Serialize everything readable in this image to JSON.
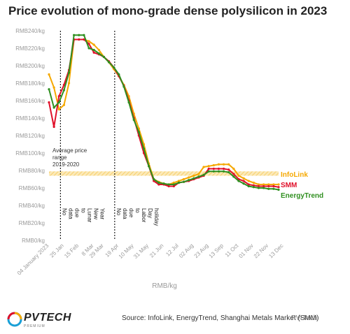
{
  "title": "Price evolution of mono-grade dense polysilicon in 2023",
  "source": "Source: InfoLink, EnergyTrend, Shanghai Metals Market (SMM)",
  "watermark": "PV-Tech",
  "logo": {
    "word": "PVTECH",
    "sub": "PREMIUM"
  },
  "chart_data": {
    "type": "line",
    "title": "Price evolution of mono-grade dense polysilicon in 2023",
    "xlabel": "RMB/kg",
    "ylabel": "",
    "ylim": [
      0,
      240
    ],
    "y_ticks": [
      0,
      20,
      40,
      60,
      80,
      100,
      120,
      140,
      160,
      180,
      200,
      220,
      240
    ],
    "y_tick_labels": [
      "RMB0/kg",
      "RMB20/kg",
      "RMB40/kg",
      "RMB60/kg",
      "RMB80/kg",
      "RMB100/kg",
      "RMB120/kg",
      "RMB140/kg",
      "RMB160/kg",
      "RMB180/kg",
      "RMB200/kg",
      "RMB220/kg",
      "RMB240/kg"
    ],
    "x_tick_labels": [
      {
        "x": 0,
        "label": "04 January 2023"
      },
      {
        "x": 3,
        "label": "25 Jan"
      },
      {
        "x": 6,
        "label": "15 Feb"
      },
      {
        "x": 9,
        "label": "8 Mar"
      },
      {
        "x": 11,
        "label": "29 Mar"
      },
      {
        "x": 14,
        "label": "19 Apr"
      },
      {
        "x": 17,
        "label": "10 May"
      },
      {
        "x": 20,
        "label": "31 May"
      },
      {
        "x": 23,
        "label": "21 Jun"
      },
      {
        "x": 26,
        "label": "12 Jul"
      },
      {
        "x": 29,
        "label": "02 Aug"
      },
      {
        "x": 32,
        "label": "23 Aug"
      },
      {
        "x": 35,
        "label": "13 Sep"
      },
      {
        "x": 38,
        "label": "11 Oct"
      },
      {
        "x": 41,
        "label": "01 Nov"
      },
      {
        "x": 44,
        "label": "22 Nov"
      },
      {
        "x": 47,
        "label": "13 Dec"
      }
    ],
    "grid": false,
    "legend_position": "right",
    "shaded_band": {
      "y_from": 74,
      "y_to": 79,
      "label": "Average price range 2019-2020",
      "color": "#f5c242"
    },
    "dashed_lines": [
      {
        "x": 3,
        "label": "No data due to Lunar New Year"
      },
      {
        "x": 14,
        "label": "No data due to Labor Day holiday"
      }
    ],
    "series": [
      {
        "name": "InfoLink",
        "color": "#f5a800",
        "values": [
          190,
          175,
          150,
          155,
          180,
          230,
          230,
          230,
          228,
          224,
          218,
          210,
          204,
          196,
          188,
          178,
          165,
          145,
          128,
          110,
          88,
          70,
          67,
          65,
          64,
          66,
          68,
          70,
          72,
          74,
          76,
          84,
          85,
          86,
          87,
          87,
          87,
          82,
          74,
          71,
          68,
          66,
          64,
          64,
          64,
          64,
          64
        ]
      },
      {
        "name": "SMM",
        "color": "#e0102a",
        "values": [
          158,
          130,
          165,
          178,
          195,
          230,
          230,
          230,
          225,
          215,
          213,
          210,
          205,
          198,
          188,
          177,
          160,
          140,
          120,
          100,
          85,
          68,
          64,
          64,
          62,
          62,
          66,
          67,
          68,
          70,
          72,
          74,
          82,
          82,
          82,
          82,
          81,
          76,
          70,
          68,
          64,
          63,
          62,
          62,
          62,
          62,
          61
        ]
      },
      {
        "name": "EnergyTrend",
        "color": "#2f8f1f",
        "values": [
          173,
          152,
          158,
          172,
          192,
          235,
          235,
          235,
          220,
          218,
          214,
          210,
          204,
          198,
          190,
          176,
          158,
          138,
          124,
          105,
          85,
          70,
          66,
          65,
          64,
          64,
          66,
          67,
          69,
          71,
          73,
          75,
          79,
          79,
          79,
          79,
          78,
          73,
          68,
          65,
          62,
          61,
          60,
          60,
          59,
          59,
          58
        ]
      }
    ]
  }
}
